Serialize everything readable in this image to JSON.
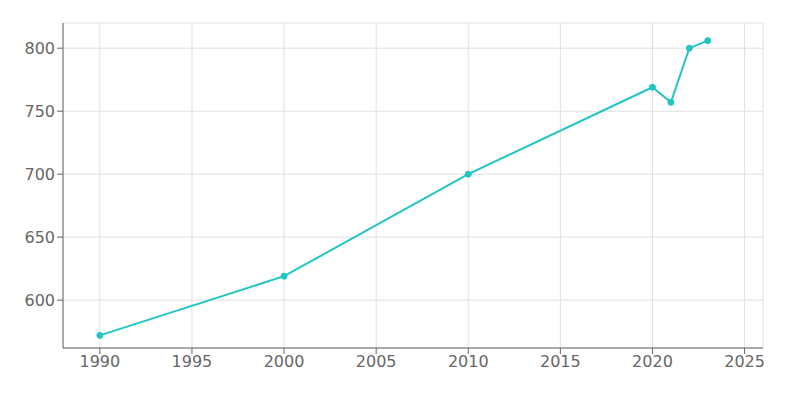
{
  "chart_data": {
    "type": "line",
    "x": [
      1990,
      2000,
      2010,
      2020,
      2021,
      2022,
      2023
    ],
    "values": [
      572,
      619,
      700,
      769,
      757,
      800,
      806
    ],
    "color": "#22C4C4",
    "marker": "circle",
    "xlim": [
      1988,
      2026
    ],
    "ylim": [
      562,
      820
    ],
    "xticks": [
      1990,
      1995,
      2000,
      2005,
      2010,
      2015,
      2020,
      2025
    ],
    "yticks": [
      600,
      650,
      700,
      750,
      800
    ],
    "grid": true
  }
}
